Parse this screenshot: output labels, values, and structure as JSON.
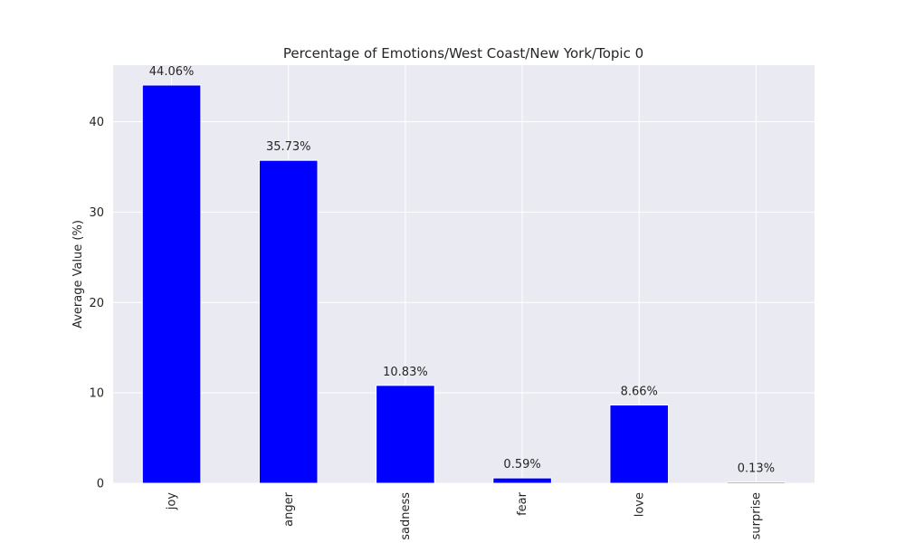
{
  "chart_data": {
    "type": "bar",
    "title": "Percentage of Emotions/West Coast/New York/Topic 0",
    "xlabel": "",
    "ylabel": "Average Value (%)",
    "categories": [
      "joy",
      "anger",
      "sadness",
      "fear",
      "love",
      "surprise"
    ],
    "values": [
      44.06,
      35.73,
      10.83,
      0.59,
      8.66,
      0.13
    ],
    "data_labels": [
      "44.06%",
      "35.73%",
      "10.83%",
      "0.59%",
      "8.66%",
      "0.13%"
    ],
    "ylim": [
      0,
      46.26
    ],
    "yticks": [
      0,
      10,
      20,
      30,
      40
    ],
    "bar_color": "#0000ff",
    "plot_background": "#eaeaf2",
    "grid": true
  }
}
